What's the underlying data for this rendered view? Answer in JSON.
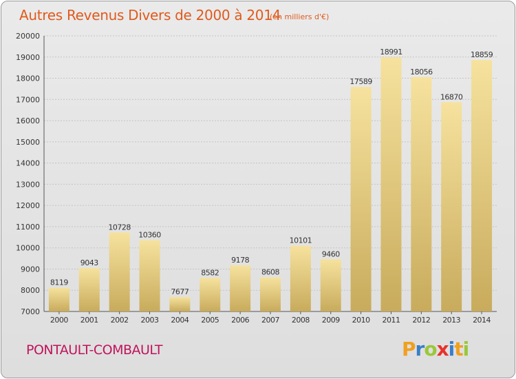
{
  "header": {
    "title": "Autres Revenus Divers de 2000 à 2014",
    "subtitle": "(en milliers d'€)"
  },
  "footer": {
    "city": "PONTAULT-COMBAULT"
  },
  "logo": {
    "letters": [
      "P",
      "r",
      "o",
      "x",
      "i",
      "t",
      "i"
    ],
    "colors": [
      "#f0a020",
      "#3a7ec8",
      "#9ac83a",
      "#e8322a",
      "#3a7ec8",
      "#f0a020",
      "#9ac83a"
    ]
  },
  "colors": {
    "bar_light": "#f6e29e",
    "bar_dark": "#c8ab5c",
    "grid": "#c4c4c4",
    "text": "#333333"
  },
  "chart_data": {
    "type": "bar",
    "title": "Autres Revenus Divers de 2000 à 2014",
    "xlabel": "",
    "ylabel": "",
    "categories": [
      "2000",
      "2001",
      "2002",
      "2003",
      "2004",
      "2005",
      "2006",
      "2007",
      "2008",
      "2009",
      "2010",
      "2011",
      "2012",
      "2013",
      "2014"
    ],
    "values": [
      8119,
      9043,
      10728,
      10360,
      7677,
      8582,
      9178,
      8608,
      10101,
      9460,
      17589,
      18991,
      18056,
      16870,
      18859
    ],
    "ylim": [
      7000,
      20000
    ],
    "yticks": [
      7000,
      8000,
      9000,
      10000,
      11000,
      12000,
      13000,
      14000,
      15000,
      16000,
      17000,
      18000,
      19000,
      20000
    ],
    "grid": true
  }
}
